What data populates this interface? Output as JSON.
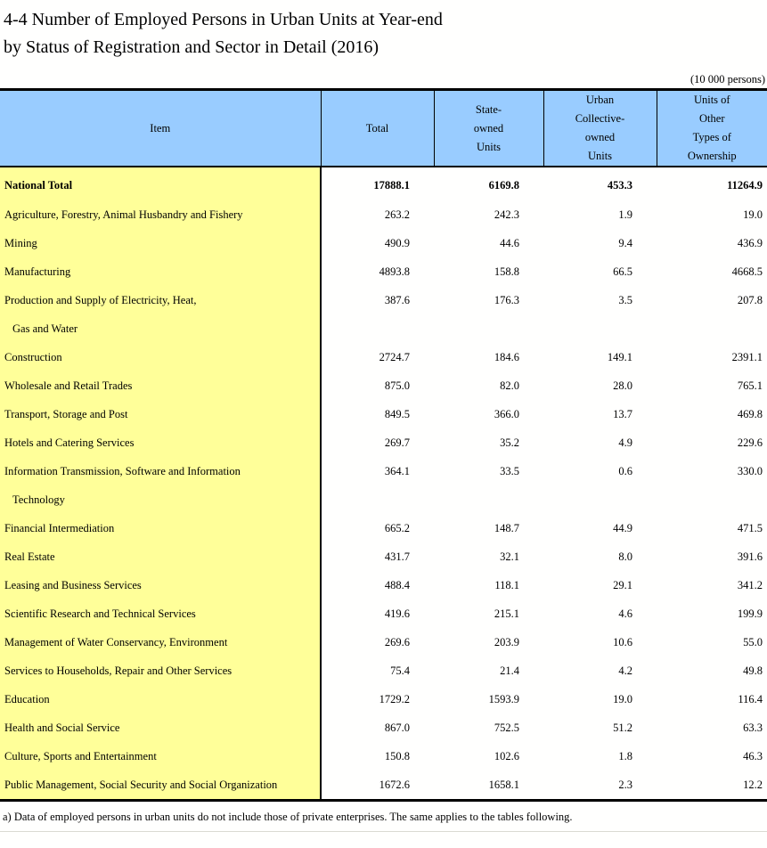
{
  "title": {
    "line1": "4-4  Number of Employed Persons in Urban Units at Year-end",
    "line2": "by Status of Registration and Sector in Detail (2016)"
  },
  "unit_note": "(10 000 persons)",
  "colors": {
    "header_bg": "#99CCFF",
    "item_bg": "#FFFF99",
    "border": "#000000"
  },
  "table": {
    "columns": [
      {
        "label": "Item"
      },
      {
        "label": "Total"
      },
      {
        "label": "State-\nowned\nUnits"
      },
      {
        "label": "Urban\nCollective-\nowned\nUnits"
      },
      {
        "label": "Units of\nOther\nTypes of\nOwnership"
      }
    ],
    "rows": [
      {
        "item": "National Total",
        "bold": true,
        "values": [
          "17888.1",
          "6169.8",
          "453.3",
          "11264.9"
        ]
      },
      {
        "item": "Agriculture, Forestry, Animal Husbandry and Fishery",
        "values": [
          "263.2",
          "242.3",
          "1.9",
          "19.0"
        ]
      },
      {
        "item": "Mining",
        "values": [
          "490.9",
          "44.6",
          "9.4",
          "436.9"
        ]
      },
      {
        "item": "Manufacturing",
        "values": [
          "4893.8",
          "158.8",
          "66.5",
          "4668.5"
        ]
      },
      {
        "item": "Production and Supply of Electricity, Heat,",
        "item_line2": "Gas and Water",
        "values": [
          "387.6",
          "176.3",
          "3.5",
          "207.8"
        ]
      },
      {
        "item": "Construction",
        "values": [
          "2724.7",
          "184.6",
          "149.1",
          "2391.1"
        ]
      },
      {
        "item": "Wholesale and Retail Trades",
        "values": [
          "875.0",
          "82.0",
          "28.0",
          "765.1"
        ]
      },
      {
        "item": "Transport, Storage and Post",
        "values": [
          "849.5",
          "366.0",
          "13.7",
          "469.8"
        ]
      },
      {
        "item": "Hotels and Catering Services",
        "values": [
          "269.7",
          "35.2",
          "4.9",
          "229.6"
        ]
      },
      {
        "item": "Information Transmission, Software and Information",
        "item_line2": "Technology",
        "values": [
          "364.1",
          "33.5",
          "0.6",
          "330.0"
        ]
      },
      {
        "item": "Financial Intermediation",
        "values": [
          "665.2",
          "148.7",
          "44.9",
          "471.5"
        ]
      },
      {
        "item": "Real Estate",
        "values": [
          "431.7",
          "32.1",
          "8.0",
          "391.6"
        ]
      },
      {
        "item": "Leasing and Business Services",
        "values": [
          "488.4",
          "118.1",
          "29.1",
          "341.2"
        ]
      },
      {
        "item": "Scientific Research and Technical Services",
        "values": [
          "419.6",
          "215.1",
          "4.6",
          "199.9"
        ]
      },
      {
        "item": "Management of Water Conservancy, Environment",
        "values": [
          "269.6",
          "203.9",
          "10.6",
          "55.0"
        ]
      },
      {
        "item": "Services to Households, Repair and Other Services",
        "values": [
          "75.4",
          "21.4",
          "4.2",
          "49.8"
        ]
      },
      {
        "item": "Education",
        "values": [
          "1729.2",
          "1593.9",
          "19.0",
          "116.4"
        ]
      },
      {
        "item": "Health and Social Service",
        "values": [
          "867.0",
          "752.5",
          "51.2",
          "63.3"
        ]
      },
      {
        "item": "Culture, Sports and Entertainment",
        "values": [
          "150.8",
          "102.6",
          "1.8",
          "46.3"
        ]
      },
      {
        "item": "Public Management, Social Security and Social Organization",
        "values": [
          "1672.6",
          "1658.1",
          "2.3",
          "12.2"
        ]
      }
    ]
  },
  "footnote": "a) Data of employed persons in urban units do not include those of private enterprises. The same applies to the tables following."
}
